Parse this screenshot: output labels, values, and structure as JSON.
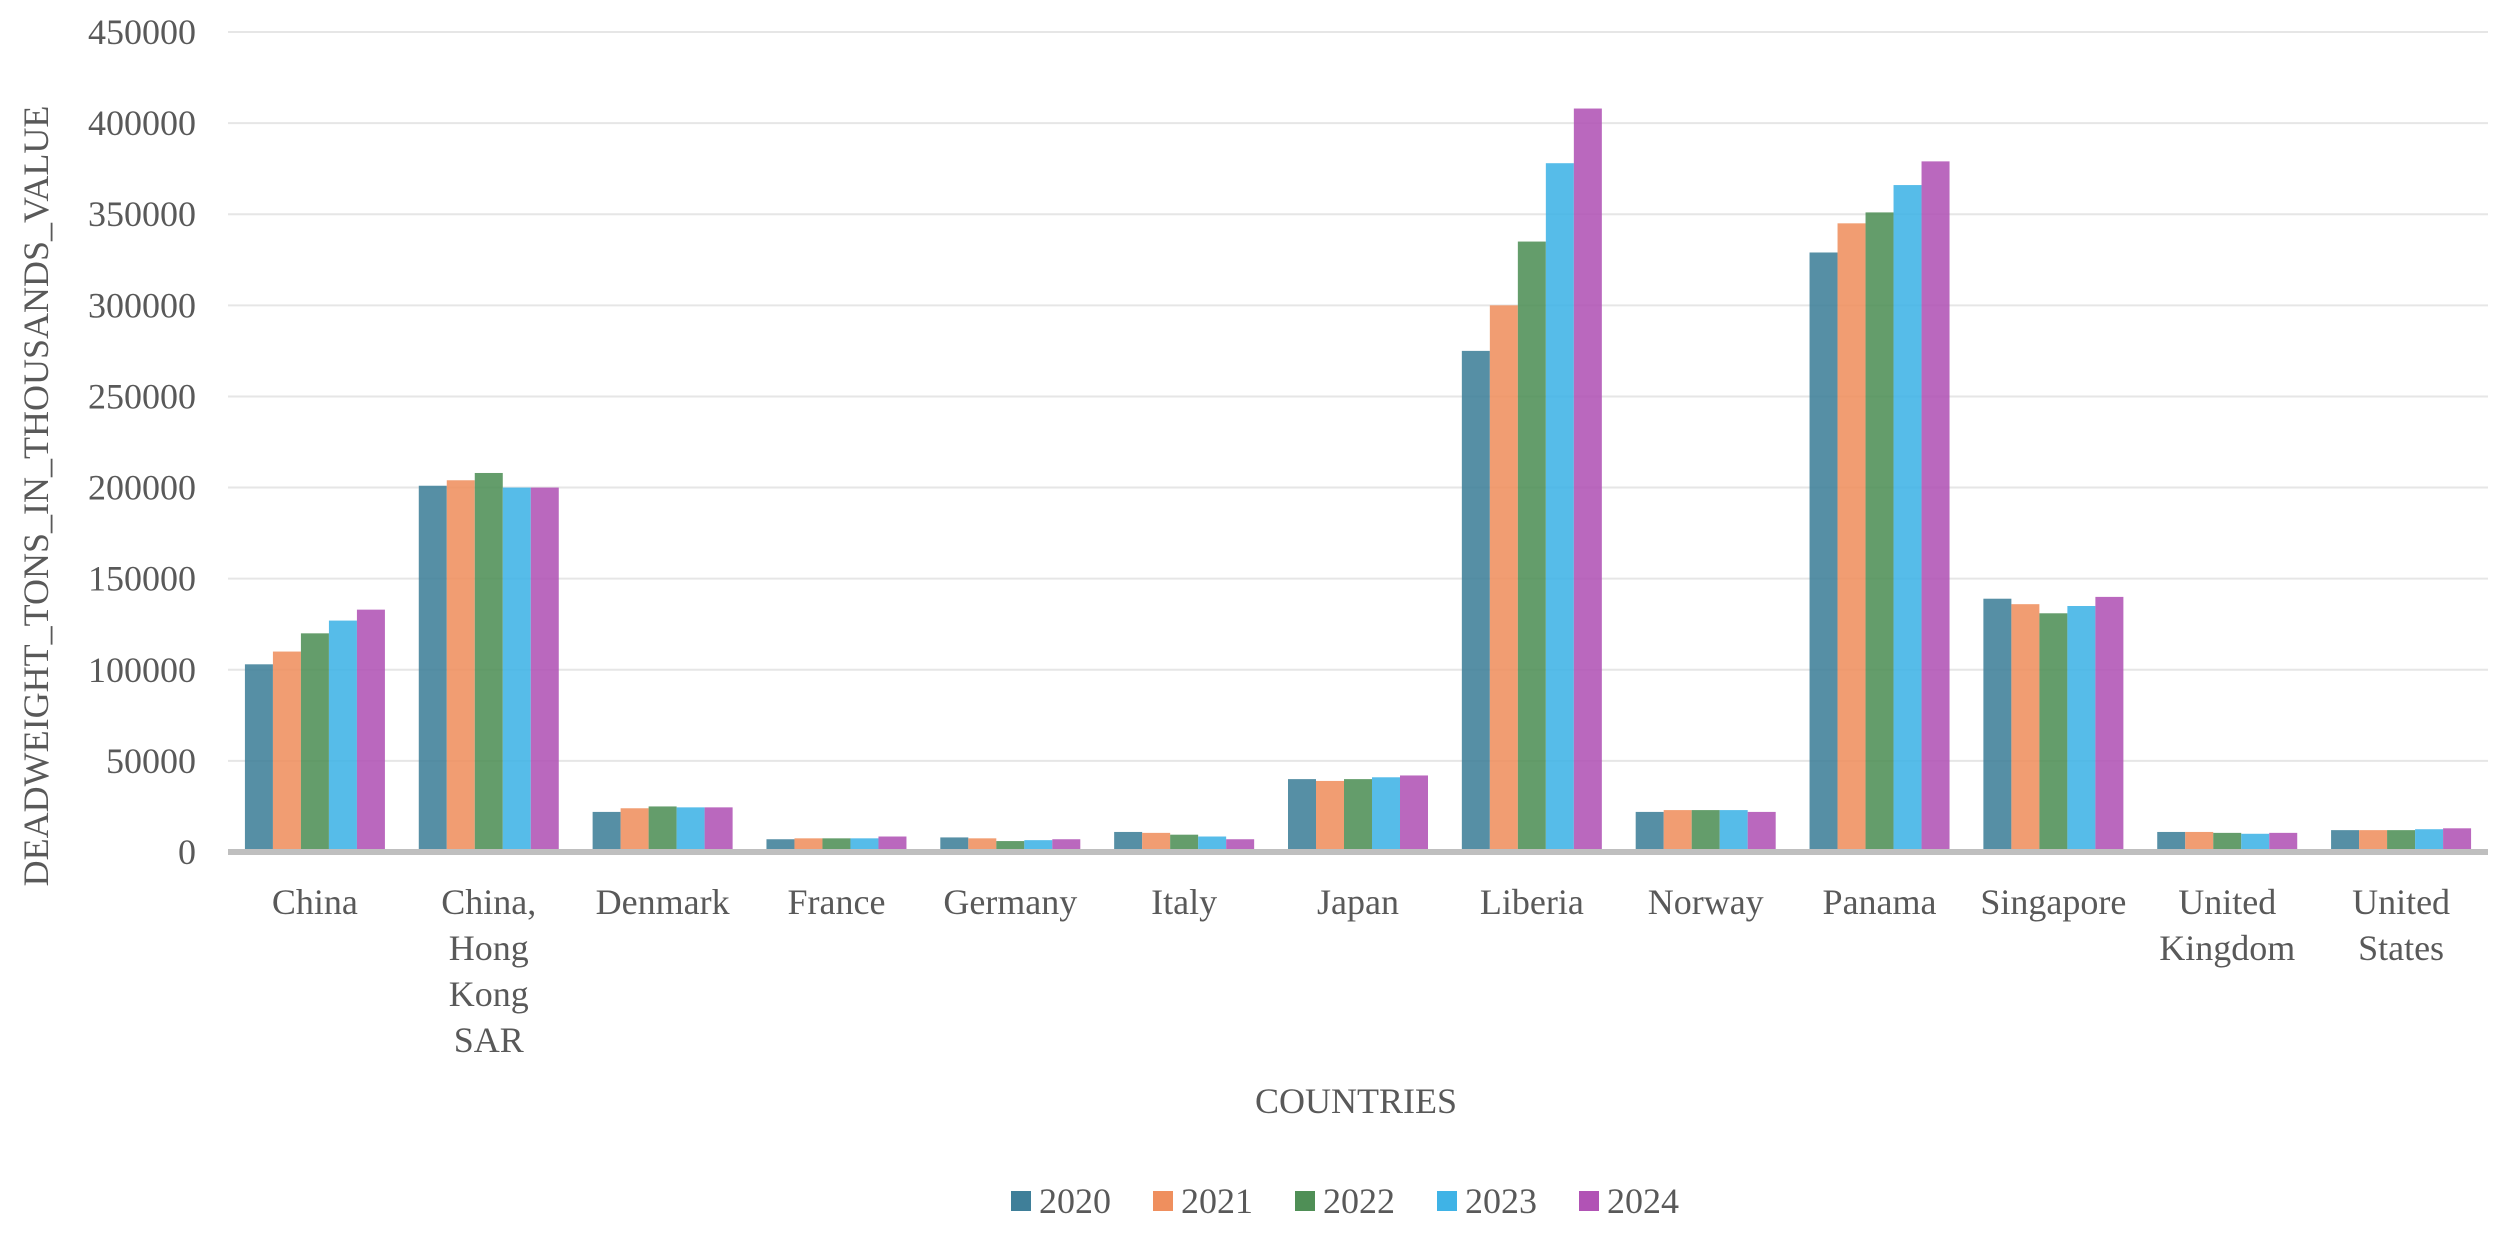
{
  "chart_data": {
    "type": "bar",
    "title": "",
    "xlabel": "COUNTRIES",
    "ylabel": "DEADWEIGHT_TONS_IN_THOUSANDS_VALUE",
    "ylim": [
      0,
      450000
    ],
    "yticks": [
      0,
      50000,
      100000,
      150000,
      200000,
      250000,
      300000,
      350000,
      400000,
      450000
    ],
    "grid": true,
    "legend_position": "bottom",
    "categories": [
      [
        "China"
      ],
      [
        "China,",
        "Hong",
        "Kong",
        "SAR"
      ],
      [
        "Denmark"
      ],
      [
        "France"
      ],
      [
        "Germany"
      ],
      [
        "Italy"
      ],
      [
        "Japan"
      ],
      [
        "Liberia"
      ],
      [
        "Norway"
      ],
      [
        "Panama"
      ],
      [
        "Singapore"
      ],
      [
        "United",
        "Kingdom"
      ],
      [
        "United",
        "States"
      ]
    ],
    "series": [
      {
        "name": "2020",
        "color": "#3f7f99",
        "values": [
          103000,
          201000,
          22000,
          7000,
          8000,
          11000,
          40000,
          275000,
          22000,
          329000,
          139000,
          11000,
          12000
        ]
      },
      {
        "name": "2021",
        "color": "#ef8f5e",
        "values": [
          110000,
          204000,
          24000,
          7500,
          7500,
          10500,
          39000,
          300000,
          23000,
          345000,
          136000,
          11000,
          12000
        ]
      },
      {
        "name": "2022",
        "color": "#4f8f56",
        "values": [
          120000,
          208000,
          25000,
          7500,
          6000,
          9500,
          40000,
          335000,
          23000,
          351000,
          131000,
          10500,
          12000
        ]
      },
      {
        "name": "2023",
        "color": "#3fb3e6",
        "values": [
          127000,
          200000,
          24500,
          7500,
          6500,
          8500,
          41000,
          378000,
          23000,
          366000,
          135000,
          10000,
          12500
        ]
      },
      {
        "name": "2024",
        "color": "#b153b5",
        "values": [
          133000,
          200000,
          24500,
          8500,
          7000,
          7000,
          42000,
          408000,
          22000,
          379000,
          140000,
          10500,
          13000
        ]
      }
    ]
  }
}
